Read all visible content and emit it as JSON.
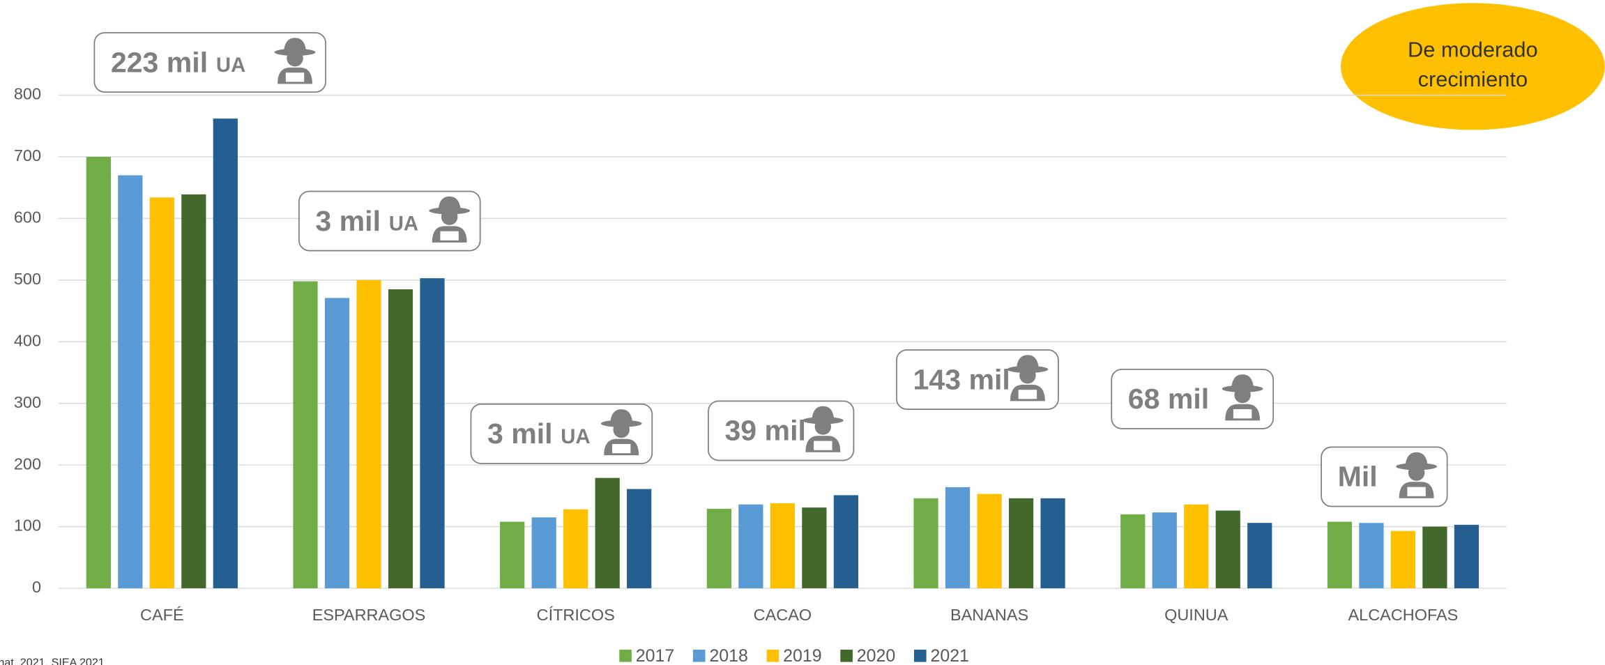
{
  "chart_data": {
    "type": "bar",
    "categories": [
      "CAFÉ",
      "ESPARRAGOS",
      "CÍTRICOS",
      "CACAO",
      "BANANAS",
      "QUINUA",
      "ALCACHOFAS"
    ],
    "series": [
      {
        "name": "2017",
        "color": "#70ad47",
        "values": [
          700,
          498,
          108,
          129,
          146,
          120,
          108
        ]
      },
      {
        "name": "2018",
        "color": "#5b9bd5",
        "values": [
          670,
          471,
          115,
          136,
          164,
          123,
          106
        ]
      },
      {
        "name": "2019",
        "color": "#ffc000",
        "values": [
          634,
          500,
          128,
          138,
          153,
          136,
          93
        ]
      },
      {
        "name": "2020",
        "color": "#43682b",
        "values": [
          639,
          485,
          179,
          131,
          146,
          126,
          100
        ]
      },
      {
        "name": "2021",
        "color": "#255e91",
        "values": [
          762,
          503,
          161,
          151,
          146,
          106,
          103
        ]
      }
    ],
    "ylim": [
      0,
      800
    ],
    "yticks": [
      0,
      100,
      200,
      300,
      400,
      500,
      600,
      700,
      800
    ],
    "grid": true,
    "legend": "bottom",
    "annotations": [
      {
        "text": "223 mil",
        "unit": "UA"
      },
      {
        "text": "3 mil",
        "unit": "UA"
      },
      {
        "text": "3 mil",
        "unit": "UA"
      },
      {
        "text": "39 mil"
      },
      {
        "text": "143 mil"
      },
      {
        "text": "68 mil"
      },
      {
        "text": "Mil"
      }
    ],
    "badge": [
      "De moderado",
      "crecimiento"
    ],
    "source": "nat, 2021, SIEA 2021"
  }
}
